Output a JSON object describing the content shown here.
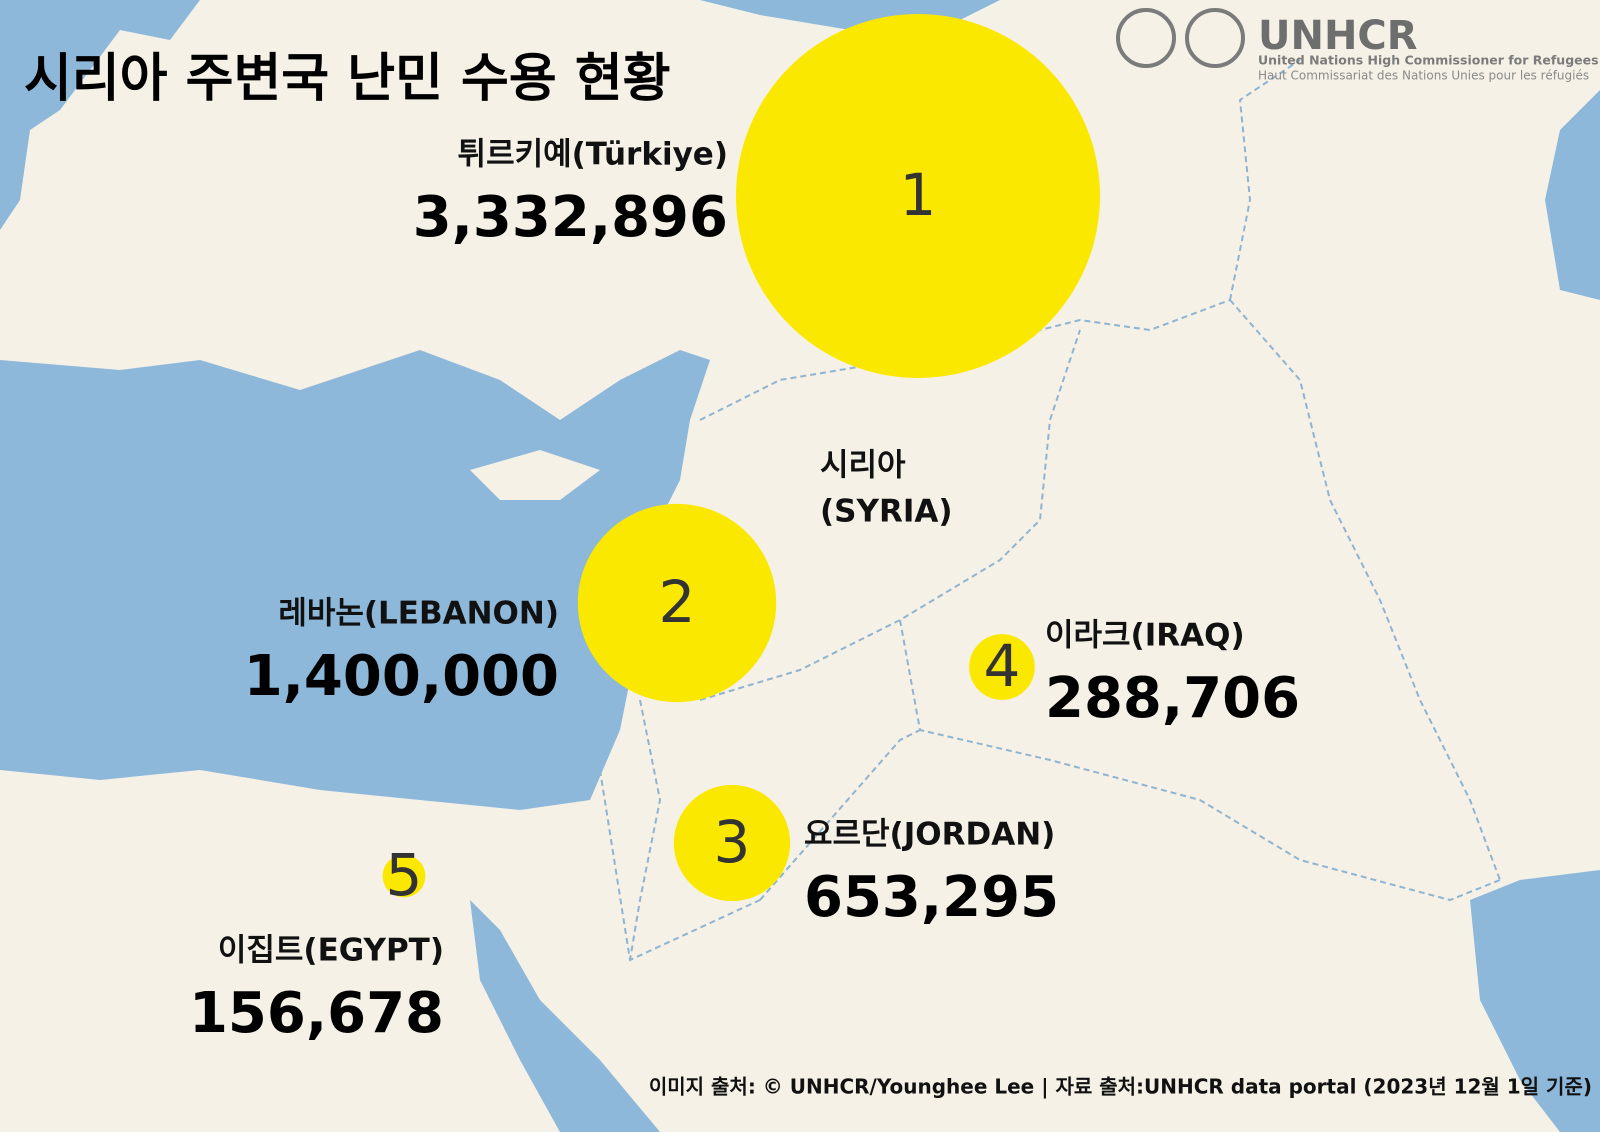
{
  "title": "시리아 주변국 난민 수용 현황",
  "logo": {
    "name": "UNHCR",
    "line1": "United Nations High Commissioner for Refugees",
    "line2": "Haut Commissariat des Nations Unies pour les réfugiés"
  },
  "syria_label": {
    "line1": "시리아",
    "line2": "(SYRIA)"
  },
  "countries": [
    {
      "rank": "1",
      "name": "튀르키예(Türkiye)",
      "value": 3332896,
      "value_label": "3,332,896"
    },
    {
      "rank": "2",
      "name": "레바논(LEBANON)",
      "value": 1400000,
      "value_label": "1,400,000"
    },
    {
      "rank": "3",
      "name": "요르단(JORDAN)",
      "value": 653295,
      "value_label": "653,295"
    },
    {
      "rank": "4",
      "name": "이라크(IRAQ)",
      "value": 288706,
      "value_label": "288,706"
    },
    {
      "rank": "5",
      "name": "이집트(EGYPT)",
      "value": 156678,
      "value_label": "156,678"
    }
  ],
  "footer": "이미지 출처: © UNHCR/Younghee Lee | 자료 출처:UNHCR data portal (2023년 12월 1일 기준)"
}
